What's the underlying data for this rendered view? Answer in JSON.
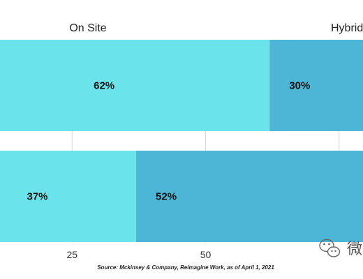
{
  "chart_data": {
    "type": "bar",
    "orientation": "horizontal",
    "stacked": true,
    "categories": [
      "",
      ""
    ],
    "series": [
      {
        "name": "On Site",
        "values": [
          62,
          37
        ],
        "labels": [
          "62%",
          "37%"
        ],
        "color": "#6be3ea"
      },
      {
        "name": "Hybrid",
        "values": [
          30,
          52
        ],
        "labels": [
          "30%",
          "52%"
        ],
        "color": "#4db5d6"
      }
    ],
    "x_ticks": [
      "25",
      "50"
    ],
    "tick_values": [
      25,
      50
    ],
    "title": "",
    "xlabel": "",
    "ylabel": "",
    "source": "Source: Mckinsey & Company, Reimagine Work,  as of April 1, 2021",
    "grid": true,
    "legend_position": "top"
  },
  "watermark": {
    "text": "微",
    "icon": "wechat-icon"
  }
}
